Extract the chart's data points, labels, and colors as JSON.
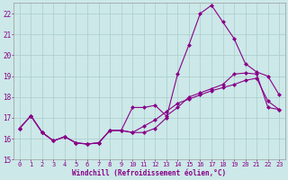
{
  "xlabel": "Windchill (Refroidissement éolien,°C)",
  "background_color": "#cce8e8",
  "grid_color": "#aacccc",
  "line_color": "#880088",
  "xlim": [
    -0.5,
    23.5
  ],
  "ylim": [
    15,
    22.5
  ],
  "yticks": [
    15,
    16,
    17,
    18,
    19,
    20,
    21,
    22
  ],
  "xticks": [
    0,
    1,
    2,
    3,
    4,
    5,
    6,
    7,
    8,
    9,
    10,
    11,
    12,
    13,
    14,
    15,
    16,
    17,
    18,
    19,
    20,
    21,
    22,
    23
  ],
  "series1_x": [
    0,
    1,
    2,
    3,
    4,
    5,
    6,
    7,
    8,
    9,
    10,
    11,
    12,
    13,
    14,
    15,
    16,
    17,
    18,
    19,
    20,
    21,
    22,
    23
  ],
  "series1_y": [
    16.5,
    17.1,
    16.3,
    15.9,
    16.1,
    15.8,
    15.75,
    15.8,
    16.4,
    16.4,
    16.3,
    16.3,
    16.5,
    17.0,
    19.1,
    20.5,
    22.0,
    22.4,
    21.6,
    20.8,
    19.6,
    19.2,
    19.0,
    18.1
  ],
  "series2_x": [
    0,
    1,
    2,
    3,
    4,
    5,
    6,
    7,
    8,
    9,
    10,
    11,
    12,
    13,
    14,
    15,
    16,
    17,
    18,
    19,
    20,
    21,
    22,
    23
  ],
  "series2_y": [
    16.5,
    17.1,
    16.3,
    15.9,
    16.1,
    15.8,
    15.75,
    15.8,
    16.4,
    16.4,
    17.5,
    17.5,
    17.6,
    17.1,
    17.5,
    18.0,
    18.2,
    18.4,
    18.6,
    19.1,
    19.15,
    19.1,
    17.5,
    17.4
  ],
  "series3_x": [
    0,
    1,
    2,
    3,
    4,
    5,
    6,
    7,
    8,
    9,
    10,
    11,
    12,
    13,
    14,
    15,
    16,
    17,
    18,
    19,
    20,
    21,
    22,
    23
  ],
  "series3_y": [
    16.5,
    17.1,
    16.3,
    15.9,
    16.1,
    15.8,
    15.75,
    15.8,
    16.4,
    16.4,
    16.3,
    16.6,
    16.9,
    17.3,
    17.7,
    17.9,
    18.1,
    18.3,
    18.45,
    18.6,
    18.8,
    18.9,
    17.8,
    17.4
  ]
}
